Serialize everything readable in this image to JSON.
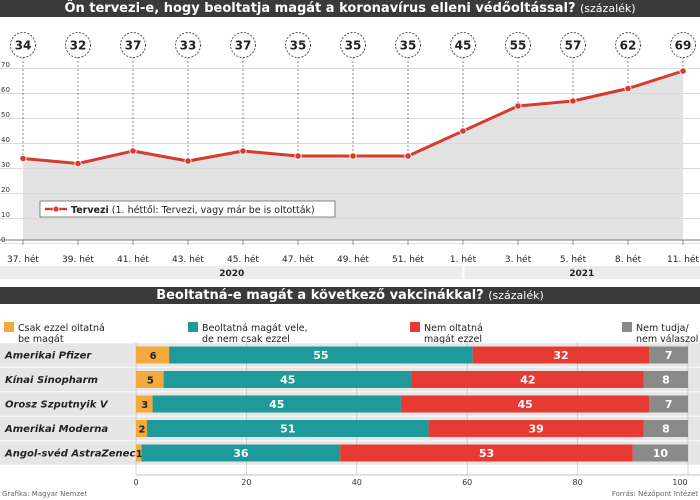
{
  "top_chart": {
    "title": "Ön tervezi-e, hogy beoltatja magát a koronavírus elleni védőoltással?",
    "unit": "(százalék)",
    "legend_label": "Tervezi",
    "legend_note": "(1. héttől: Tervezi, vagy már be is oltották)",
    "year_labels": [
      "2020",
      "2021"
    ]
  },
  "bottom_chart": {
    "title": "Beoltatná-e magát a következő vakcinákkal?",
    "unit": "(százalék)",
    "legend": [
      {
        "label": "Csak ezzel oltatná be magát",
        "lines": [
          "Csak ezzel oltatná",
          "be magát"
        ]
      },
      {
        "label": "Beoltatná magát vele, de nem csak ezzel",
        "lines": [
          "Beoltatná magát vele,",
          "de nem csak ezzel"
        ]
      },
      {
        "label": "Nem oltatná magát ezzel",
        "lines": [
          "Nem oltatná",
          "magát ezzel"
        ]
      },
      {
        "label": "Nem tudja/ nem válaszol",
        "lines": [
          "Nem tudja/",
          "nem válaszol"
        ]
      }
    ]
  },
  "footer": {
    "left": "Grafika: Magyar Nemzet",
    "right": "Forrás: Nézőpont Intézet"
  },
  "colors": {
    "line": "#d63b2f",
    "area": "#e2e2e2",
    "only_this": "#f4a93c",
    "also_others": "#1f9a9a",
    "not": "#e63a32",
    "dont_know": "#8a8a8a"
  },
  "chart_data": [
    {
      "type": "line",
      "title": "Ön tervezi-e, hogy beoltatja magát a koronavírus elleni védőoltással?",
      "categories": [
        "37. hét",
        "39. hét",
        "41. hét",
        "43. hét",
        "45. hét",
        "47. hét",
        "49. hét",
        "51. hét",
        "1. hét",
        "3. hét",
        "5. hét",
        "8. hét",
        "11. hét"
      ],
      "series": [
        {
          "name": "Tervezi",
          "values": [
            34,
            32,
            37,
            33,
            37,
            35,
            35,
            35,
            45,
            55,
            57,
            62,
            69
          ]
        }
      ],
      "ylim": [
        0,
        75
      ],
      "yticks": [
        0,
        10,
        20,
        30,
        40,
        50,
        60,
        70
      ],
      "grid": true,
      "legend_position": "lower-left"
    },
    {
      "type": "bar",
      "orientation": "horizontal",
      "stacked": true,
      "title": "Beoltatná-e magát a következő vakcinákkal?",
      "categories": [
        "Amerikai Pfizer",
        "Kínai Sinopharm",
        "Orosz Szputnyik V",
        "Amerikai Moderna",
        "Angol-svéd AstraZeneca"
      ],
      "series": [
        {
          "name": "Csak ezzel oltatná be magát",
          "values": [
            6,
            5,
            3,
            2,
            1
          ]
        },
        {
          "name": "Beoltatná magát vele, de nem csak ezzel",
          "values": [
            55,
            45,
            45,
            51,
            36
          ]
        },
        {
          "name": "Nem oltatná magát ezzel",
          "values": [
            32,
            42,
            45,
            39,
            53
          ]
        },
        {
          "name": "Nem tudja/ nem válaszol",
          "values": [
            7,
            8,
            7,
            8,
            10
          ]
        }
      ],
      "xlim": [
        0,
        100
      ],
      "xticks": [
        0,
        20,
        40,
        60,
        80,
        100
      ],
      "grid": true,
      "legend_position": "top"
    }
  ]
}
